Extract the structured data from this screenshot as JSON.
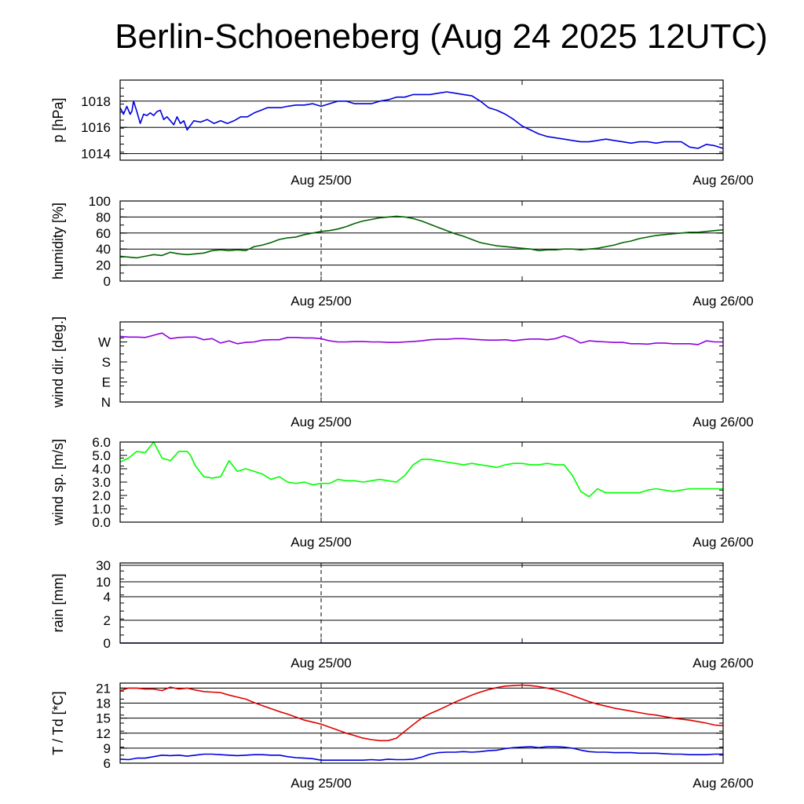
{
  "title": "Berlin-Schoeneberg (Aug 24 2025 12UTC)",
  "chart_data": [
    {
      "type": "line",
      "ylabel": "p [hPa]",
      "x_ticks": [
        {
          "t": 12,
          "label": "Aug 25/00"
        },
        {
          "t": 36,
          "label": "Aug 26/00"
        }
      ],
      "xlim": [
        0,
        36
      ],
      "ylim": [
        1013.5,
        1019.6
      ],
      "yticks": [
        1014,
        1016,
        1018
      ],
      "ytick_labels": [
        "1014",
        "1016",
        "1018"
      ],
      "grid": true,
      "series": [
        {
          "color": "#0000e0",
          "x": [
            0,
            0.2,
            0.4,
            0.6,
            0.7,
            0.8,
            1.0,
            1.2,
            1.4,
            1.6,
            1.8,
            2.0,
            2.2,
            2.4,
            2.6,
            2.8,
            3.0,
            3.2,
            3.4,
            3.6,
            3.8,
            4.0,
            4.4,
            4.8,
            5.2,
            5.6,
            6.0,
            6.4,
            6.8,
            7.2,
            7.6,
            8.0,
            8.4,
            8.8,
            9.2,
            9.6,
            10,
            10.5,
            11,
            11.5,
            12,
            12.5,
            13,
            13.5,
            14,
            14.5,
            15,
            15.5,
            16,
            16.5,
            17,
            17.5,
            18,
            18.5,
            19,
            19.5,
            20,
            20.5,
            21,
            21.5,
            22,
            22.5,
            23,
            23.5,
            24,
            24.5,
            25,
            25.5,
            26,
            26.5,
            27,
            27.5,
            28,
            28.5,
            29,
            29.5,
            30,
            30.5,
            31,
            31.5,
            32,
            32.5,
            33,
            33.5,
            34,
            34.5,
            35,
            35.5,
            36
          ],
          "values": [
            1017.5,
            1017.0,
            1017.6,
            1017.0,
            1017.2,
            1018.0,
            1017.2,
            1016.3,
            1017.0,
            1016.9,
            1017.1,
            1016.9,
            1017.2,
            1017.3,
            1016.6,
            1016.8,
            1016.5,
            1016.2,
            1016.8,
            1016.3,
            1016.5,
            1015.8,
            1016.5,
            1016.4,
            1016.6,
            1016.3,
            1016.5,
            1016.3,
            1016.5,
            1016.8,
            1016.8,
            1017.1,
            1017.3,
            1017.5,
            1017.5,
            1017.5,
            1017.6,
            1017.7,
            1017.7,
            1017.8,
            1017.6,
            1017.8,
            1018.0,
            1018.0,
            1017.8,
            1017.8,
            1017.8,
            1018.0,
            1018.1,
            1018.3,
            1018.3,
            1018.5,
            1018.5,
            1018.5,
            1018.6,
            1018.7,
            1018.6,
            1018.5,
            1018.4,
            1018.0,
            1017.5,
            1017.3,
            1017.0,
            1016.6,
            1016.1,
            1015.8,
            1015.5,
            1015.3,
            1015.2,
            1015.1,
            1015.0,
            1014.9,
            1014.9,
            1015.0,
            1015.1,
            1015.0,
            1014.9,
            1014.8,
            1014.9,
            1014.9,
            1014.8,
            1014.9,
            1014.9,
            1014.9,
            1014.5,
            1014.4,
            1014.7,
            1014.6,
            1014.4
          ]
        }
      ]
    },
    {
      "type": "line",
      "ylabel": "humidity [%]",
      "x_ticks": [
        {
          "t": 12,
          "label": "Aug 25/00"
        },
        {
          "t": 36,
          "label": "Aug 26/00"
        }
      ],
      "xlim": [
        0,
        36
      ],
      "ylim": [
        0,
        100
      ],
      "yticks": [
        0,
        20,
        40,
        60,
        80,
        100
      ],
      "ytick_labels": [
        "0",
        "20",
        "40",
        "60",
        "80",
        "100"
      ],
      "grid": true,
      "series": [
        {
          "color": "#006400",
          "x": [
            0,
            0.5,
            1,
            1.5,
            2,
            2.5,
            3,
            3.5,
            4,
            4.5,
            5,
            5.5,
            6,
            6.5,
            7,
            7.5,
            8,
            8.5,
            9,
            9.5,
            10,
            10.5,
            11,
            11.5,
            12,
            12.5,
            13,
            13.5,
            14,
            14.5,
            15,
            15.5,
            16,
            16.5,
            17,
            17.5,
            18,
            18.5,
            19,
            19.5,
            20,
            20.5,
            21,
            21.5,
            22,
            22.5,
            23,
            23.5,
            24,
            24.5,
            25,
            25.5,
            26,
            26.5,
            27,
            27.5,
            28,
            28.5,
            29,
            29.5,
            30,
            30.5,
            31,
            31.5,
            32,
            32.5,
            33,
            33.5,
            34,
            34.5,
            35,
            35.5,
            36
          ],
          "values": [
            31,
            30,
            29,
            31,
            33,
            32,
            36,
            34,
            33,
            34,
            35,
            38,
            39,
            38,
            39,
            38,
            43,
            45,
            48,
            52,
            54,
            55,
            58,
            60,
            62,
            63,
            65,
            68,
            72,
            75,
            77,
            79,
            80,
            81,
            80,
            78,
            75,
            71,
            67,
            63,
            59,
            56,
            52,
            48,
            46,
            44,
            43,
            42,
            41,
            40,
            38,
            39,
            39,
            40,
            40,
            39,
            40,
            41,
            43,
            45,
            48,
            50,
            53,
            55,
            57,
            58,
            59,
            60,
            61,
            61,
            62,
            63,
            64
          ]
        }
      ]
    },
    {
      "type": "line",
      "ylabel": "wind dir. [deg.]",
      "x_ticks": [
        {
          "t": 12,
          "label": "Aug 25/00"
        },
        {
          "t": 36,
          "label": "Aug 26/00"
        }
      ],
      "xlim": [
        0,
        36
      ],
      "ylim": [
        0,
        360
      ],
      "yticks": [
        0,
        90,
        180,
        270
      ],
      "ytick_labels": [
        "N",
        "E",
        "S",
        "W"
      ],
      "grid": false,
      "series": [
        {
          "color": "#9000e0",
          "x": [
            0,
            0.5,
            1,
            1.5,
            2,
            2.5,
            3,
            3.5,
            4,
            4.5,
            5,
            5.5,
            6,
            6.5,
            7,
            7.5,
            8,
            8.5,
            9,
            9.5,
            10,
            10.5,
            11,
            11.5,
            12,
            12.5,
            13,
            13.5,
            14,
            14.5,
            15,
            15.5,
            16,
            16.5,
            17,
            17.5,
            18,
            18.5,
            19,
            19.5,
            20,
            20.5,
            21,
            21.5,
            22,
            22.5,
            23,
            23.5,
            24,
            24.5,
            25,
            25.5,
            26,
            26.5,
            27,
            27.5,
            28,
            28.5,
            29,
            29.5,
            30,
            30.5,
            31,
            31.5,
            32,
            32.5,
            33,
            33.5,
            34,
            34.5,
            35,
            35.5,
            36
          ],
          "values": [
            295,
            292,
            292,
            290,
            300,
            310,
            285,
            290,
            292,
            292,
            280,
            285,
            265,
            275,
            262,
            268,
            270,
            278,
            280,
            280,
            290,
            290,
            288,
            288,
            285,
            275,
            270,
            270,
            272,
            272,
            270,
            270,
            268,
            268,
            270,
            272,
            275,
            280,
            282,
            282,
            285,
            285,
            282,
            280,
            278,
            278,
            280,
            275,
            280,
            283,
            283,
            280,
            285,
            298,
            285,
            265,
            275,
            272,
            270,
            268,
            268,
            262,
            262,
            260,
            265,
            265,
            262,
            262,
            262,
            258,
            275,
            270,
            270
          ]
        }
      ]
    },
    {
      "type": "line",
      "ylabel": "wind sp. [m/s]",
      "x_ticks": [
        {
          "t": 12,
          "label": "Aug 25/00"
        },
        {
          "t": 36,
          "label": "Aug 26/00"
        }
      ],
      "xlim": [
        0,
        36
      ],
      "ylim": [
        0,
        6
      ],
      "yticks": [
        0,
        1,
        2,
        3,
        4,
        5,
        6
      ],
      "ytick_labels": [
        "0.0",
        "1.0",
        "2.0",
        "3.0",
        "4.0",
        "5.0",
        "6.0"
      ],
      "grid": false,
      "series": [
        {
          "color": "#00ff00",
          "x": [
            0,
            0.5,
            1,
            1.5,
            2,
            2.5,
            3,
            3.5,
            4,
            4.2,
            4.5,
            5,
            5.5,
            6,
            6.5,
            7,
            7.5,
            8,
            8.5,
            9,
            9.5,
            10,
            10.5,
            11,
            11.5,
            12,
            12.5,
            13,
            13.5,
            14,
            14.5,
            15,
            15.5,
            16,
            16.5,
            17,
            17.5,
            18,
            18.5,
            19,
            19.5,
            20,
            20.5,
            21,
            21.5,
            22,
            22.5,
            23,
            23.5,
            24,
            24.5,
            25,
            25.5,
            26,
            26.5,
            27,
            27.5,
            28,
            28.5,
            29,
            29.5,
            30,
            30.5,
            31,
            31.5,
            32,
            32.5,
            33,
            33.5,
            34,
            34.5,
            35,
            35.5,
            36
          ],
          "values": [
            4.5,
            4.8,
            5.3,
            5.2,
            6.0,
            4.8,
            4.6,
            5.3,
            5.3,
            5.0,
            4.2,
            3.4,
            3.3,
            3.4,
            4.6,
            3.8,
            4.0,
            3.8,
            3.6,
            3.2,
            3.4,
            3.0,
            2.9,
            3.0,
            2.8,
            2.9,
            2.9,
            3.2,
            3.1,
            3.1,
            3.0,
            3.1,
            3.2,
            3.1,
            3.0,
            3.5,
            4.3,
            4.7,
            4.7,
            4.6,
            4.5,
            4.4,
            4.3,
            4.4,
            4.3,
            4.2,
            4.1,
            4.3,
            4.4,
            4.4,
            4.3,
            4.3,
            4.4,
            4.3,
            4.3,
            3.5,
            2.3,
            1.9,
            2.5,
            2.2,
            2.2,
            2.2,
            2.2,
            2.2,
            2.4,
            2.5,
            2.4,
            2.3,
            2.4,
            2.5,
            2.5,
            2.5,
            2.5,
            2.5
          ]
        }
      ]
    },
    {
      "type": "line",
      "ylabel": "rain [mm]",
      "x_ticks": [
        {
          "t": 12,
          "label": "Aug 25/00"
        },
        {
          "t": 36,
          "label": "Aug 26/00"
        }
      ],
      "xlim": [
        0,
        36
      ],
      "yticks": [
        0,
        2,
        4,
        10,
        30
      ],
      "ytick_labels": [
        "0",
        "2",
        "4",
        "10",
        "30"
      ],
      "grid": true,
      "series": [
        {
          "color": "#00008b",
          "x": [
            0,
            36
          ],
          "values": [
            0,
            0
          ]
        }
      ]
    },
    {
      "type": "line",
      "ylabel": "T / Td [*C]",
      "x_ticks": [
        {
          "t": 12,
          "label": "Aug 25/00"
        },
        {
          "t": 36,
          "label": "Aug 26/00"
        }
      ],
      "xlim": [
        0,
        36
      ],
      "ylim": [
        6,
        22
      ],
      "yticks": [
        6,
        9,
        12,
        15,
        18,
        21
      ],
      "ytick_labels": [
        "6",
        "9",
        "12",
        "15",
        "18",
        "21"
      ],
      "grid": true,
      "series": [
        {
          "color": "#e00000",
          "x": [
            0,
            0.5,
            1,
            1.5,
            2,
            2.5,
            3,
            3.5,
            4,
            4.5,
            5,
            5.5,
            6,
            6.5,
            7,
            7.5,
            8,
            8.5,
            9,
            9.5,
            10,
            10.5,
            11,
            11.5,
            12,
            12.5,
            13,
            13.5,
            14,
            14.5,
            15,
            15.5,
            16,
            16.5,
            17,
            17.5,
            18,
            18.5,
            19,
            19.5,
            20,
            20.5,
            21,
            21.5,
            22,
            22.5,
            23,
            23.5,
            24,
            24.5,
            25,
            25.5,
            26,
            26.5,
            27,
            27.5,
            28,
            28.5,
            29,
            29.5,
            30,
            30.5,
            31,
            31.5,
            32,
            32.5,
            33,
            33.5,
            34,
            34.5,
            35,
            35.5,
            36
          ],
          "values": [
            20.5,
            21.0,
            21.0,
            20.8,
            20.8,
            20.5,
            21.2,
            20.8,
            21.0,
            20.6,
            20.3,
            20.2,
            20.1,
            19.6,
            19.2,
            18.8,
            18.1,
            17.5,
            16.9,
            16.3,
            15.8,
            15.2,
            14.6,
            14.2,
            13.8,
            13.2,
            12.6,
            12.0,
            11.5,
            11.0,
            10.7,
            10.5,
            10.5,
            11.0,
            12.4,
            13.7,
            15.0,
            15.9,
            16.6,
            17.4,
            18.2,
            18.9,
            19.6,
            20.2,
            20.7,
            21.1,
            21.4,
            21.5,
            21.6,
            21.5,
            21.3,
            21.0,
            20.6,
            20.1,
            19.5,
            18.9,
            18.3,
            17.8,
            17.4,
            17.0,
            16.7,
            16.4,
            16.1,
            15.8,
            15.6,
            15.3,
            15.0,
            14.8,
            14.6,
            14.3,
            14.0,
            13.6,
            13.5
          ]
        },
        {
          "color": "#0000e0",
          "x": [
            0,
            0.5,
            1,
            1.5,
            2,
            2.5,
            3,
            3.5,
            4,
            4.5,
            5,
            5.5,
            6,
            6.5,
            7,
            7.5,
            8,
            8.5,
            9,
            9.5,
            10,
            10.5,
            11,
            11.5,
            12,
            12.5,
            13,
            13.5,
            14,
            14.5,
            15,
            15.5,
            16,
            16.5,
            17,
            17.5,
            18,
            18.5,
            19,
            19.5,
            20,
            20.5,
            21,
            21.5,
            22,
            22.5,
            23,
            23.5,
            24,
            24.5,
            25,
            25.5,
            26,
            26.5,
            27,
            27.5,
            28,
            28.5,
            29,
            29.5,
            30,
            30.5,
            31,
            31.5,
            32,
            32.5,
            33,
            33.5,
            34,
            34.5,
            35,
            35.5,
            36
          ],
          "values": [
            6.8,
            6.7,
            7.0,
            7.0,
            7.3,
            7.6,
            7.5,
            7.6,
            7.4,
            7.6,
            7.8,
            7.8,
            7.7,
            7.6,
            7.5,
            7.6,
            7.7,
            7.7,
            7.6,
            7.6,
            7.3,
            7.1,
            7.0,
            6.9,
            6.6,
            6.6,
            6.6,
            6.6,
            6.6,
            6.6,
            6.7,
            6.6,
            6.8,
            6.7,
            6.7,
            6.8,
            7.2,
            7.8,
            8.1,
            8.2,
            8.2,
            8.3,
            8.2,
            8.3,
            8.5,
            8.6,
            8.9,
            9.1,
            9.2,
            9.3,
            9.1,
            9.3,
            9.3,
            9.2,
            9.0,
            8.6,
            8.3,
            8.2,
            8.2,
            8.1,
            8.1,
            8.1,
            8.0,
            8.0,
            8.0,
            7.9,
            7.8,
            7.8,
            7.7,
            7.7,
            7.7,
            7.8,
            7.8
          ]
        }
      ]
    }
  ]
}
